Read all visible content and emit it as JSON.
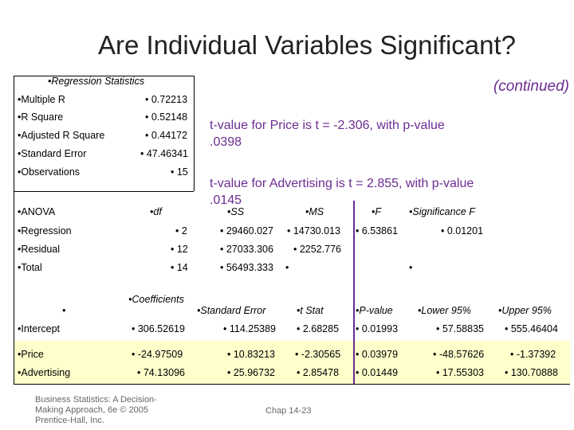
{
  "header": {
    "title": "Are Individual Variables Significant?",
    "note": "(continued)"
  },
  "stats": {
    "heading": "•Regression Statistics",
    "rows": [
      [
        "•Multiple R",
        "• 0.72213"
      ],
      [
        "•R Square",
        "• 0.52148"
      ],
      [
        "•Adjusted R Square",
        "• 0.44172"
      ],
      [
        "•Standard Error",
        "• 47.46341"
      ],
      [
        "•Observations",
        "• 15"
      ]
    ]
  },
  "callouts": [
    "t-value for Price is  t = -2.306, with p-value .0398",
    "t-value for Advertising is t = 2.855, with p-value .0145"
  ],
  "anova": {
    "header": [
      "•ANOVA",
      "•df",
      "•SS",
      "•MS",
      "•F",
      "•Significance F"
    ],
    "rows": [
      [
        "•Regression",
        "• 2",
        "• 29460.027",
        "• 14730.013",
        "• 6.53861",
        "• 0.01201"
      ],
      [
        "•Residual",
        "• 12",
        "• 27033.306",
        "• 2252.776"
      ],
      [
        "•Total",
        "• 14",
        "• 56493.333",
        "•",
        "•"
      ]
    ]
  },
  "coefficients": {
    "header": [
      "•",
      "•Coefficients",
      "•Standard Error",
      "•t Stat",
      "•P-value",
      "•Lower 95%",
      "•Upper 95%"
    ],
    "rows": [
      [
        "•Intercept",
        "• 306.52619",
        "• 114.25389",
        "• 2.68285",
        "• 0.01993",
        "• 57.58835",
        "• 555.46404"
      ],
      [
        "•Price",
        "• -24.97509",
        "• 10.83213",
        "• -2.30565",
        "• 0.03979",
        "• -48.57626",
        "• -1.37392"
      ],
      [
        "•Advertising",
        "• 74.13096",
        "• 25.96732",
        "• 2.85478",
        "• 0.01449",
        "• 17.55303",
        "• 130.70888"
      ]
    ]
  },
  "footer": {
    "source": "Business Statistics: A Decision-Making Approach, 6e © 2005 Prentice-Hall, Inc.",
    "page": "Chap 14-23"
  }
}
